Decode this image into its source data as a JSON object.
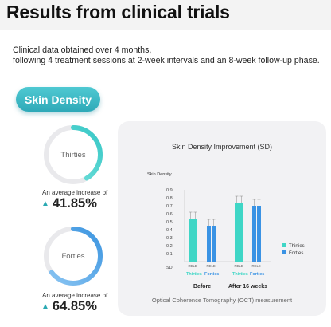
{
  "header": {
    "title": "Results from clinical trials"
  },
  "description": {
    "line1": "Clinical data obtained over 4 months,",
    "line2": "following 4 treatment sessions at 2-week intervals and an 8-week follow-up phase."
  },
  "badge": {
    "label": "Skin Density"
  },
  "groups": [
    {
      "label": "Thirties",
      "increase_label": "An average increase of",
      "increase_value": "41.85%",
      "color": "#4fd3d0"
    },
    {
      "label": "Forties",
      "increase_label": "An average increase of",
      "increase_value": "64.85%",
      "color": "#4a9fe0"
    }
  ],
  "chart_data": {
    "type": "bar",
    "title": "Skin Density Improvement (SD)",
    "ylabel": "Skin Density",
    "ylim": [
      0,
      0.9
    ],
    "yticks": [
      "SD",
      "0.1",
      "0.2",
      "0.3",
      "0.4",
      "0.5",
      "0.6",
      "0.7",
      "0.8",
      "0.9"
    ],
    "timepoints": [
      "Before",
      "After 16 weeks"
    ],
    "bar_labels": [
      "RE",
      "LE"
    ],
    "group_labels": [
      "Thirties",
      "Forties"
    ],
    "series": [
      {
        "name": "Thirties",
        "color": "#3fd6c6",
        "before": [
          0.54,
          0.54
        ],
        "after": [
          0.74,
          0.74
        ]
      },
      {
        "name": "Forties",
        "color": "#3a93e4",
        "before": [
          0.45,
          0.45
        ],
        "after": [
          0.7,
          0.7
        ]
      }
    ],
    "error": 0.08,
    "legend": "right",
    "footnote": "Optical Coherence Tomography (OCT) measurement"
  }
}
